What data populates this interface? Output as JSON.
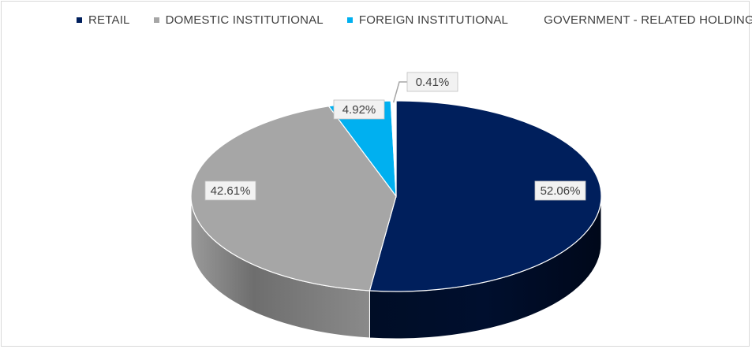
{
  "chart_data": {
    "type": "pie",
    "style": "3d",
    "legend_position": "top",
    "series": [
      {
        "name": "RETAIL",
        "value": 52.06,
        "label": "52.06%",
        "color": "#001f5c"
      },
      {
        "name": "DOMESTIC INSTITUTIONAL",
        "value": 42.61,
        "label": "42.61%",
        "color": "#a6a6a6"
      },
      {
        "name": "FOREIGN INSTITUTIONAL",
        "value": 4.92,
        "label": "4.92%",
        "color": "#00b0f0"
      },
      {
        "name": "GOVERNMENT - RELATED HOLDINGS",
        "value": 0.41,
        "label": "0.41%",
        "color": "#ffffff"
      }
    ]
  }
}
